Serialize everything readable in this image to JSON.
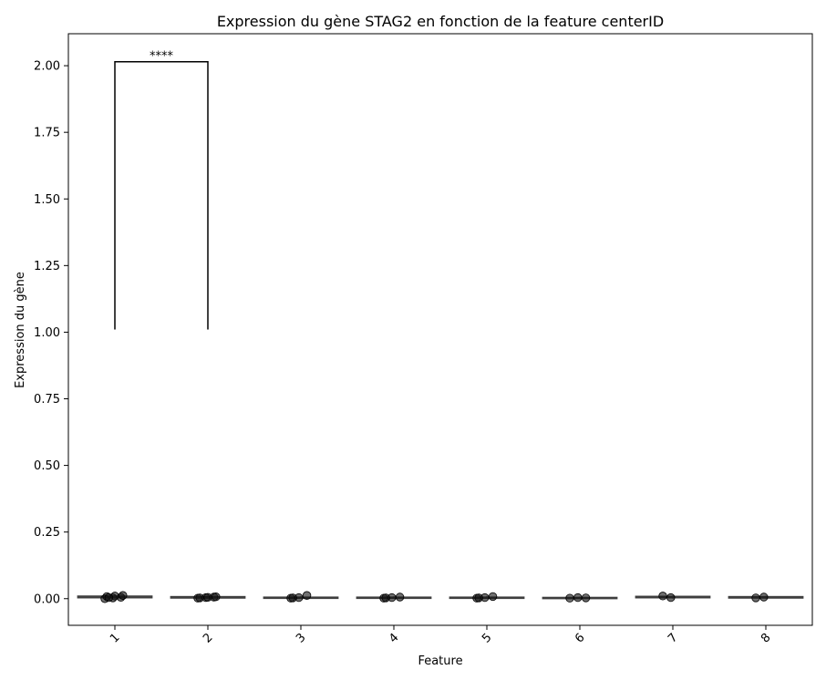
{
  "chart_data": {
    "type": "box",
    "title": "Expression du gène STAG2 en fonction de la feature centerID",
    "xlabel": "Feature",
    "ylabel": "Expression du gène",
    "ylim": [
      -0.1,
      2.12
    ],
    "yticks": [
      "0.00",
      "0.25",
      "0.50",
      "0.75",
      "1.00",
      "1.25",
      "1.50",
      "1.75",
      "2.00"
    ],
    "ytick_values": [
      0,
      0.25,
      0.5,
      0.75,
      1.0,
      1.25,
      1.5,
      1.75,
      2.0
    ],
    "categories": [
      "1",
      "2",
      "3",
      "4",
      "5",
      "6",
      "7",
      "8"
    ],
    "boxes": [
      {
        "q1": 0.003,
        "median": 0.006,
        "q3": 0.01,
        "whisker_low": 0.0,
        "whisker_high": 0.016,
        "points": [
          0.0,
          0.003,
          0.005,
          0.008,
          0.01,
          0.012,
          0.004
        ]
      },
      {
        "q1": 0.002,
        "median": 0.004,
        "q3": 0.008,
        "whisker_low": 0.0,
        "whisker_high": 0.012,
        "points": [
          0.002,
          0.004,
          0.006,
          0.003,
          0.005,
          0.007
        ]
      },
      {
        "q1": 0.001,
        "median": 0.003,
        "q3": 0.006,
        "whisker_low": 0.0,
        "whisker_high": 0.01,
        "points": [
          0.002,
          0.004,
          0.012,
          0.003
        ]
      },
      {
        "q1": 0.001,
        "median": 0.003,
        "q3": 0.006,
        "whisker_low": 0.0,
        "whisker_high": 0.009,
        "points": [
          0.002,
          0.004,
          0.006,
          0.003
        ]
      },
      {
        "q1": 0.001,
        "median": 0.003,
        "q3": 0.006,
        "whisker_low": 0.0,
        "whisker_high": 0.01,
        "points": [
          0.002,
          0.004,
          0.008,
          0.003
        ]
      },
      {
        "q1": 0.001,
        "median": 0.003,
        "q3": 0.005,
        "whisker_low": 0.0,
        "whisker_high": 0.008,
        "points": [
          0.002,
          0.004,
          0.003
        ]
      },
      {
        "q1": 0.003,
        "median": 0.006,
        "q3": 0.009,
        "whisker_low": 0.0,
        "whisker_high": 0.012,
        "points": [
          0.01,
          0.004
        ]
      },
      {
        "q1": 0.002,
        "median": 0.005,
        "q3": 0.008,
        "whisker_low": 0.0,
        "whisker_high": 0.011,
        "points": [
          0.003,
          0.006
        ]
      }
    ],
    "annotations": [
      {
        "text": "****",
        "from": "1",
        "to": "2",
        "y_low": 1.01,
        "y_high": 2.015
      }
    ],
    "grid": false
  }
}
